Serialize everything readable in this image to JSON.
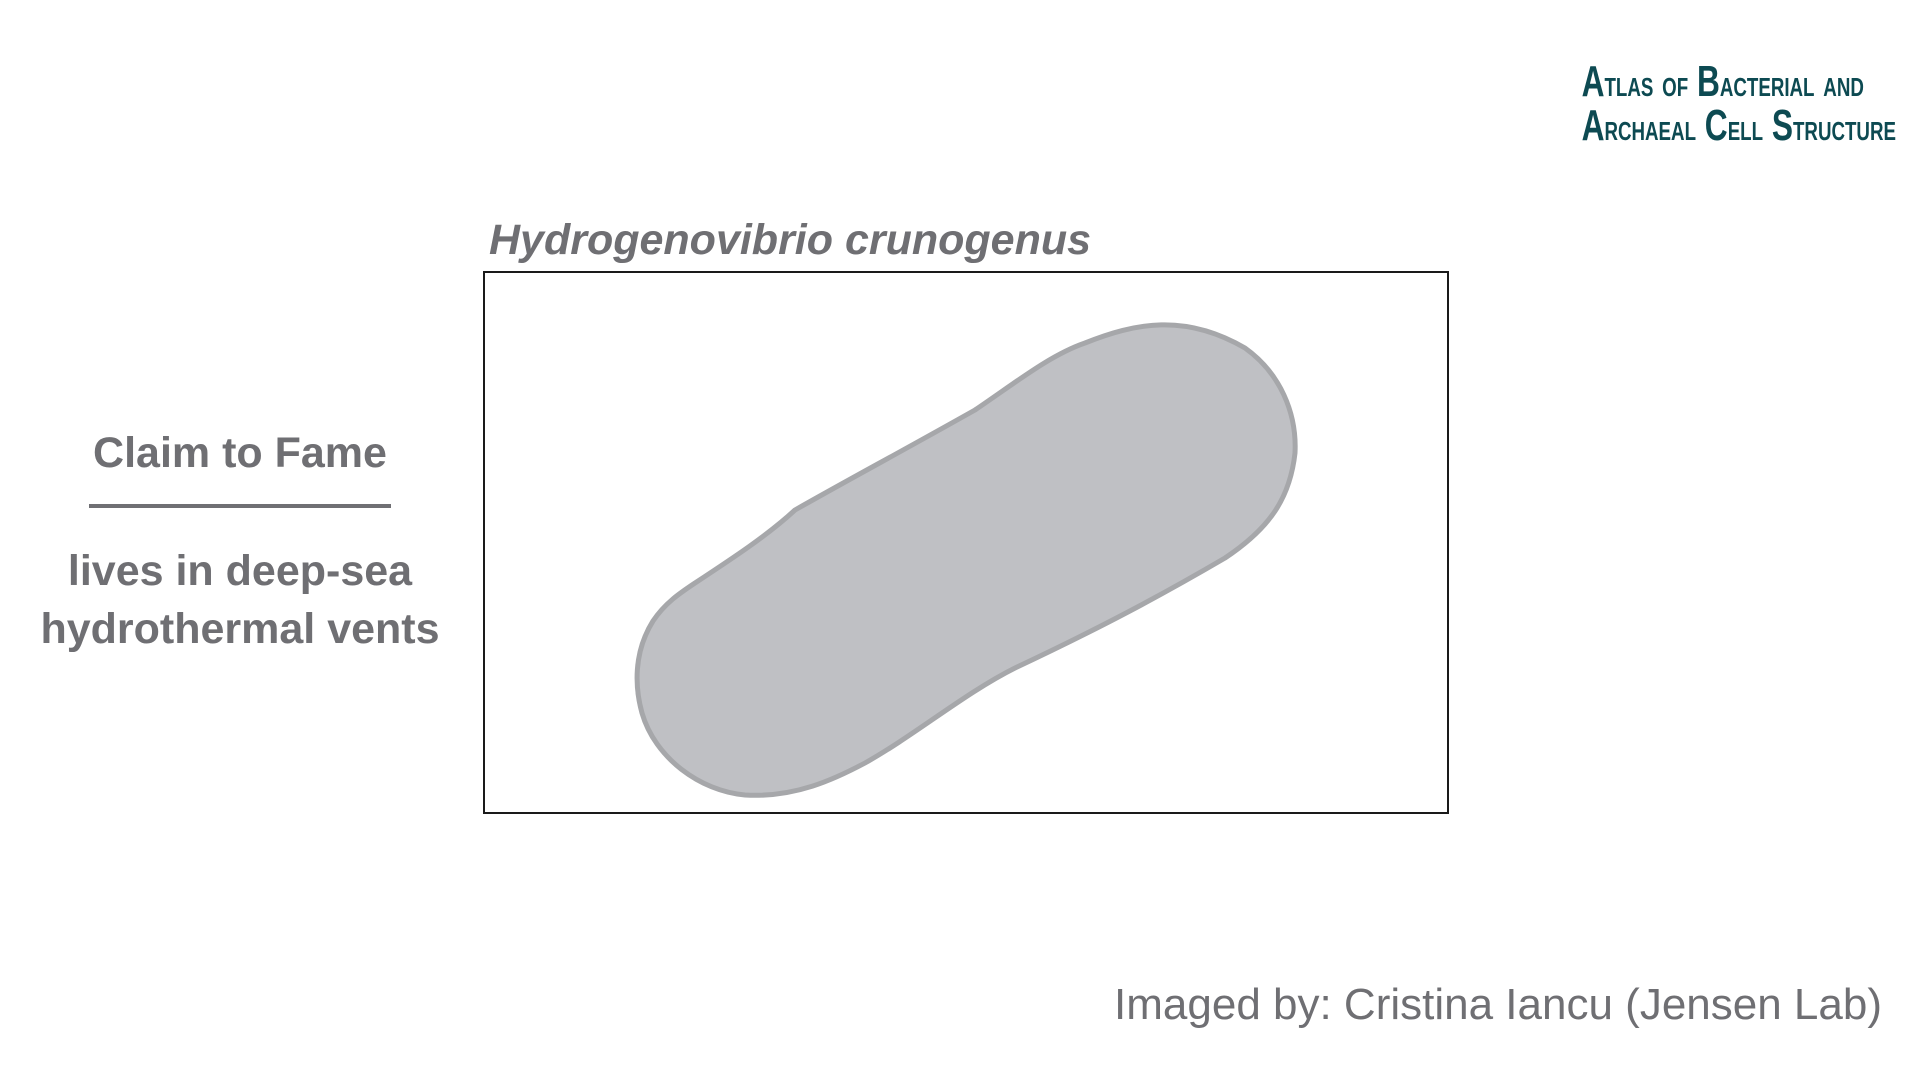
{
  "logo": {
    "line1_a": "A",
    "line1_b": "TLAS",
    "line1_c": "OF",
    "line1_d": "B",
    "line1_e": "ACTERIAL",
    "line1_f": "AND",
    "line2_a": "A",
    "line2_b": "RCHAEAL",
    "line2_c": "C",
    "line2_d": "ELL",
    "line2_e": "S",
    "line2_f": "TRUCTURE"
  },
  "species": {
    "name": "Hydrogenovibrio crunogenus"
  },
  "claim": {
    "heading": "Claim to Fame",
    "text": "lives in deep-sea\nhydrothermal vents"
  },
  "credit": {
    "text": "Imaged by: Cristina Iancu (Jensen Lab)"
  },
  "colors": {
    "text_gray": "#6f6f73",
    "logo_teal": "#0d4a52",
    "cell_fill": "#bfc0c4",
    "cell_stroke": "#a6a7aa",
    "frame_border": "#1a1a1a"
  },
  "illustration": {
    "subject": "rod-shaped-cell"
  }
}
